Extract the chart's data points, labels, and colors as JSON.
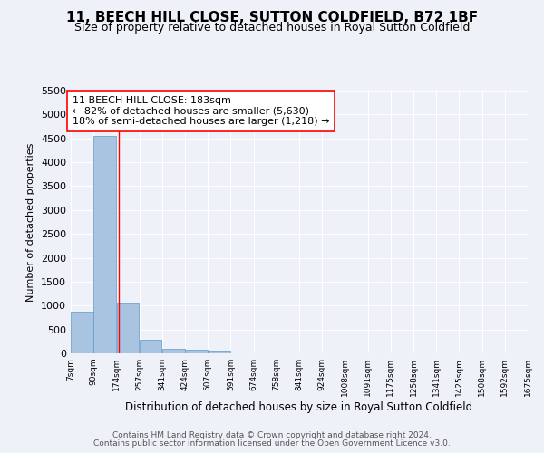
{
  "title": "11, BEECH HILL CLOSE, SUTTON COLDFIELD, B72 1BF",
  "subtitle": "Size of property relative to detached houses in Royal Sutton Coldfield",
  "xlabel": "Distribution of detached houses by size in Royal Sutton Coldfield",
  "ylabel": "Number of detached properties",
  "footer_line1": "Contains HM Land Registry data © Crown copyright and database right 2024.",
  "footer_line2": "Contains public sector information licensed under the Open Government Licence v3.0.",
  "annotation_line1": "11 BEECH HILL CLOSE: 183sqm",
  "annotation_line2": "← 82% of detached houses are smaller (5,630)",
  "annotation_line3": "18% of semi-detached houses are larger (1,218) →",
  "bar_color": "#a8c4e0",
  "bar_edge_color": "#5a9ac8",
  "property_line_x": 183,
  "ylim": [
    0,
    5500
  ],
  "yticks": [
    0,
    500,
    1000,
    1500,
    2000,
    2500,
    3000,
    3500,
    4000,
    4500,
    5000,
    5500
  ],
  "bin_edges": [
    7,
    90,
    174,
    257,
    341,
    424,
    507,
    591,
    674,
    758,
    841,
    924,
    1008,
    1091,
    1175,
    1258,
    1341,
    1425,
    1508,
    1592,
    1675
  ],
  "bin_labels": [
    "7sqm",
    "90sqm",
    "174sqm",
    "257sqm",
    "341sqm",
    "424sqm",
    "507sqm",
    "591sqm",
    "674sqm",
    "758sqm",
    "841sqm",
    "924sqm",
    "1008sqm",
    "1091sqm",
    "1175sqm",
    "1258sqm",
    "1341sqm",
    "1425sqm",
    "1508sqm",
    "1592sqm",
    "1675sqm"
  ],
  "bar_heights": [
    870,
    4560,
    1060,
    290,
    90,
    70,
    50,
    0,
    0,
    0,
    0,
    0,
    0,
    0,
    0,
    0,
    0,
    0,
    0,
    0
  ],
  "background_color": "#eef2f8",
  "grid_color": "#ffffff",
  "title_fontsize": 11,
  "subtitle_fontsize": 9,
  "annotation_fontsize": 8
}
